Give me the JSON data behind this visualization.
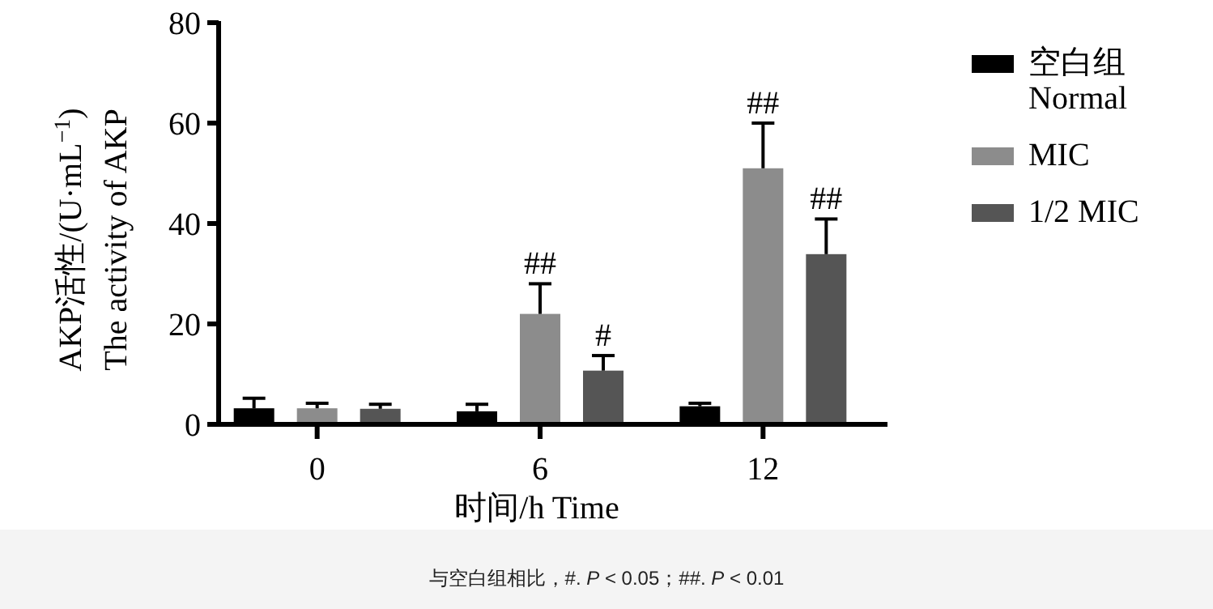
{
  "chart_data": {
    "type": "bar",
    "xlabel": "时间/h Time",
    "ylabel": "AKP活性/(U·mL$^{−1}$)\nThe activity of AKP",
    "categories": [
      "0",
      "6",
      "12"
    ],
    "series": [
      {
        "name": "空白组\nNormal",
        "color": "#000000",
        "values": [
          3.2,
          2.6,
          3.6
        ],
        "errors": [
          2.0,
          1.4,
          0.6
        ]
      },
      {
        "name": "MIC",
        "color": "#8c8c8c",
        "values": [
          3.2,
          22.0,
          51.0
        ],
        "errors": [
          1.0,
          6.0,
          9.0
        ],
        "value_labels": [
          null,
          "##",
          "##"
        ]
      },
      {
        "name": "1/2 MIC",
        "color": "#555555",
        "values": [
          3.1,
          10.7,
          33.9
        ],
        "errors": [
          0.9,
          3.0,
          7.0
        ],
        "value_labels": [
          null,
          "#",
          "##"
        ]
      }
    ],
    "ylim": [
      0,
      80
    ],
    "yticks": [
      0,
      20,
      40,
      60,
      80
    ],
    "grid": false,
    "legend": "right",
    "annotations": [
      "与空白组相比，#. *P* < 0.05；##. *P* < 0.01"
    ]
  }
}
